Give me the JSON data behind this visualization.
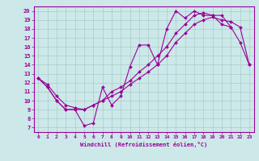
{
  "title": "",
  "xlabel": "Windchill (Refroidissement éolien,°C)",
  "background_color": "#cce8e8",
  "grid_color": "#aacccc",
  "line_color": "#990099",
  "xlim": [
    -0.5,
    23.5
  ],
  "ylim": [
    6.5,
    20.5
  ],
  "yticks": [
    7,
    8,
    9,
    10,
    11,
    12,
    13,
    14,
    15,
    16,
    17,
    18,
    19,
    20
  ],
  "xticks": [
    0,
    1,
    2,
    3,
    4,
    5,
    6,
    7,
    8,
    9,
    10,
    11,
    12,
    13,
    14,
    15,
    16,
    17,
    18,
    19,
    20,
    21,
    22,
    23
  ],
  "series": [
    {
      "x": [
        0,
        1,
        2,
        3,
        4,
        5,
        6,
        7,
        8,
        9,
        10,
        11,
        12,
        13,
        14,
        15,
        16,
        17,
        18,
        19,
        20,
        21
      ],
      "y": [
        12.5,
        11.5,
        10.0,
        9.0,
        9.0,
        7.2,
        7.5,
        11.5,
        9.5,
        10.5,
        13.8,
        16.2,
        16.2,
        14.0,
        18.0,
        20.0,
        19.2,
        20.0,
        19.5,
        19.5,
        19.5,
        18.2
      ]
    },
    {
      "x": [
        0,
        1,
        2,
        3,
        4,
        5,
        6,
        7,
        8,
        9,
        10,
        11,
        12,
        13,
        14,
        15,
        16,
        17,
        18,
        19,
        20,
        21,
        22,
        23
      ],
      "y": [
        12.5,
        11.5,
        10.0,
        9.0,
        9.0,
        9.0,
        9.5,
        10.0,
        10.5,
        11.0,
        11.8,
        12.5,
        13.2,
        14.0,
        15.0,
        16.5,
        17.5,
        18.5,
        19.0,
        19.3,
        19.0,
        18.8,
        18.2,
        14.0
      ]
    },
    {
      "x": [
        0,
        1,
        2,
        3,
        4,
        5,
        6,
        7,
        8,
        9,
        10,
        11,
        12,
        13,
        14,
        15,
        16,
        17,
        18,
        19,
        20,
        21,
        22,
        23
      ],
      "y": [
        12.5,
        11.8,
        10.5,
        9.5,
        9.2,
        9.0,
        9.5,
        10.0,
        11.0,
        11.5,
        12.2,
        13.2,
        14.0,
        15.0,
        16.0,
        17.5,
        18.5,
        19.5,
        19.8,
        19.5,
        18.5,
        18.2,
        16.5,
        14.0
      ]
    }
  ]
}
